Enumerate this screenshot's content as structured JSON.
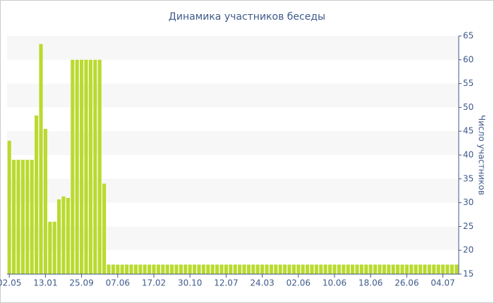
{
  "chart_data": {
    "type": "bar",
    "title": "Динамика участников беседы",
    "y_label": "Число участников",
    "categories": [
      "02.05",
      null,
      null,
      null,
      null,
      null,
      null,
      null,
      "13.01",
      null,
      null,
      null,
      null,
      null,
      null,
      null,
      "25.09",
      null,
      null,
      null,
      null,
      null,
      null,
      null,
      "07.06",
      null,
      null,
      null,
      null,
      null,
      null,
      null,
      "17.02",
      null,
      null,
      null,
      null,
      null,
      null,
      null,
      "30.10",
      null,
      null,
      null,
      null,
      null,
      null,
      null,
      "12.07",
      null,
      null,
      null,
      null,
      null,
      null,
      null,
      "24.03",
      null,
      null,
      null,
      null,
      null,
      null,
      null,
      "02.06",
      null,
      null,
      null,
      null,
      null,
      null,
      null,
      "10.06",
      null,
      null,
      null,
      null,
      null,
      null,
      null,
      "18.06",
      null,
      null,
      null,
      null,
      null,
      null,
      null,
      "26.06",
      null,
      null,
      null,
      null,
      null,
      null,
      null,
      "04.07",
      null,
      null,
      null
    ],
    "values": [
      43,
      39,
      39,
      39,
      39,
      39,
      48.3,
      63.3,
      45.5,
      26,
      26,
      30.7,
      31.3,
      31,
      60,
      60,
      60,
      60,
      60,
      60,
      60,
      34,
      17,
      17,
      17,
      17,
      17,
      17,
      17,
      17,
      17,
      17,
      17,
      17,
      17,
      17,
      17,
      17,
      17,
      17,
      17,
      17,
      17,
      17,
      17,
      17,
      17,
      17,
      17,
      17,
      17,
      17,
      17,
      17,
      17,
      17,
      17,
      17,
      17,
      17,
      17,
      17,
      17,
      17,
      17,
      17,
      17,
      17,
      17,
      17,
      17,
      17,
      17,
      17,
      17,
      17,
      17,
      17,
      17,
      17,
      17,
      17,
      17,
      17,
      17,
      17,
      17,
      17,
      17,
      17,
      17,
      17,
      17,
      17,
      17,
      17,
      17,
      17,
      17,
      17
    ],
    "color": "#bada2f",
    "ylim": [
      15,
      65
    ],
    "yticks": [
      15,
      20,
      25,
      30,
      35,
      40,
      45,
      50,
      55,
      60,
      65
    ],
    "grid": true
  }
}
